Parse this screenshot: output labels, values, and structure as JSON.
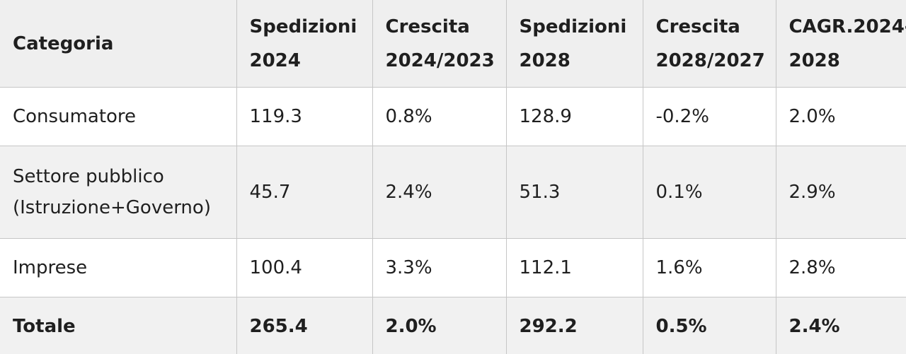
{
  "table": {
    "headers": [
      [
        "Categoria"
      ],
      [
        "Spedizioni",
        "2024"
      ],
      [
        "Crescita",
        "2024/2023"
      ],
      [
        "Spedizioni",
        "2028"
      ],
      [
        "Crescita",
        "2028/2027"
      ],
      [
        "CAGR.2024-",
        "2028"
      ]
    ],
    "rows": [
      {
        "category": [
          "Consumatore"
        ],
        "values": [
          "119.3",
          "0.8%",
          "128.9",
          "-0.2%",
          "2.0%"
        ]
      },
      {
        "category": [
          "Settore pubblico",
          "(Istruzione+Governo)"
        ],
        "values": [
          "45.7",
          "2.4%",
          "51.3",
          "0.1%",
          "2.9%"
        ]
      },
      {
        "category": [
          "Imprese"
        ],
        "values": [
          "100.4",
          "3.3%",
          "112.1",
          "1.6%",
          "2.8%"
        ]
      }
    ],
    "total": {
      "label": "Totale",
      "values": [
        "265.4",
        "2.0%",
        "292.2",
        "0.5%",
        "2.4%"
      ]
    }
  }
}
